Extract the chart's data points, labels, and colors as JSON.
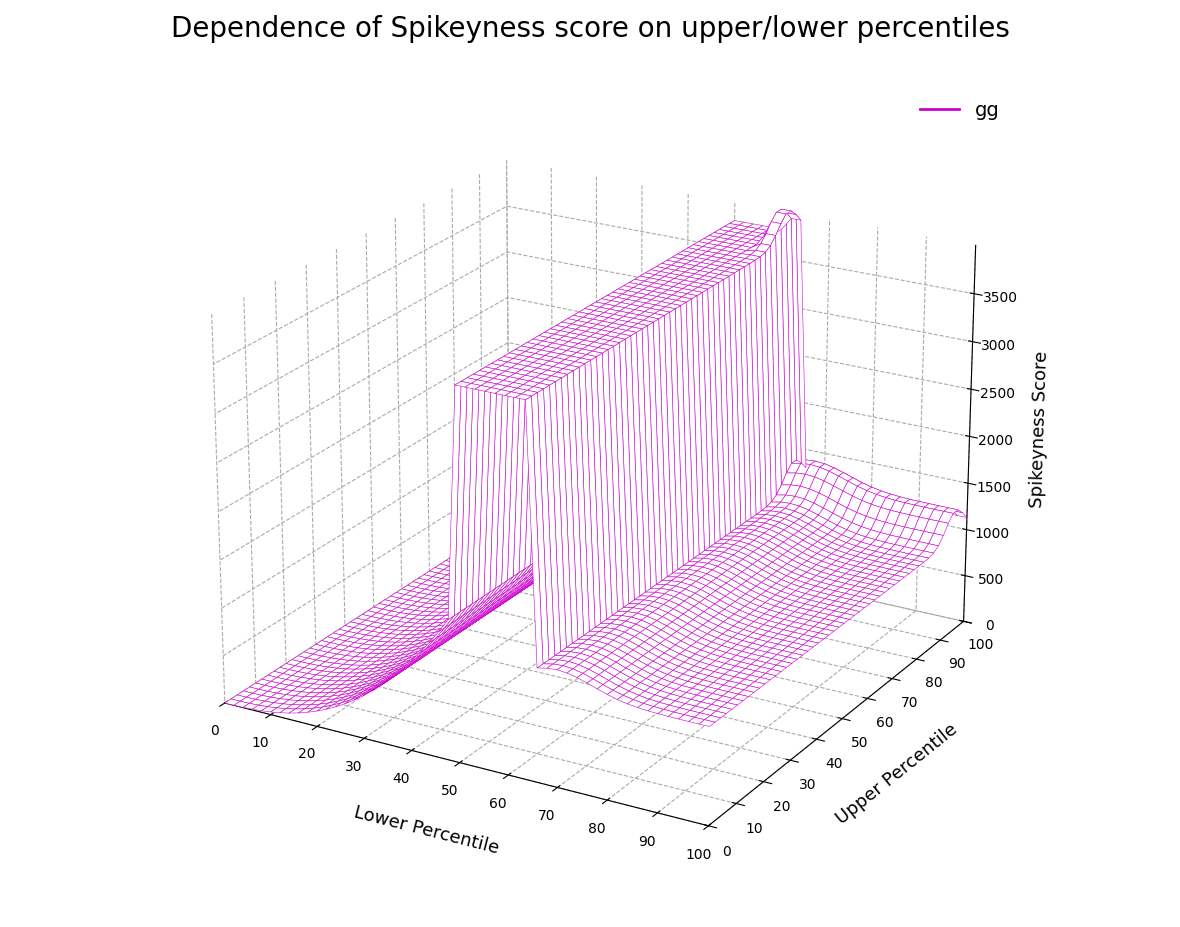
{
  "title": "Dependence of Spikeyness score on upper/lower percentiles",
  "xlabel": "Lower Percentile",
  "ylabel": "Upper Percentile",
  "zlabel": "Spikeyness Score",
  "legend_label": "gg",
  "edge_color": "#CC00CC",
  "face_color": "#FFFFFF",
  "xlim": [
    0,
    100
  ],
  "ylim": [
    0,
    100
  ],
  "zlim": [
    0,
    4000
  ],
  "xticks": [
    0,
    10,
    20,
    30,
    40,
    50,
    60,
    70,
    80,
    90,
    100
  ],
  "yticks": [
    0,
    10,
    20,
    30,
    40,
    50,
    60,
    70,
    80,
    90,
    100
  ],
  "zticks": [
    0,
    500,
    1000,
    1500,
    2000,
    2500,
    3000,
    3500
  ],
  "n_points": 51,
  "background_color": "#ffffff",
  "title_fontsize": 20,
  "axis_label_fontsize": 13,
  "tick_fontsize": 10,
  "elev": 22,
  "azim": -60
}
